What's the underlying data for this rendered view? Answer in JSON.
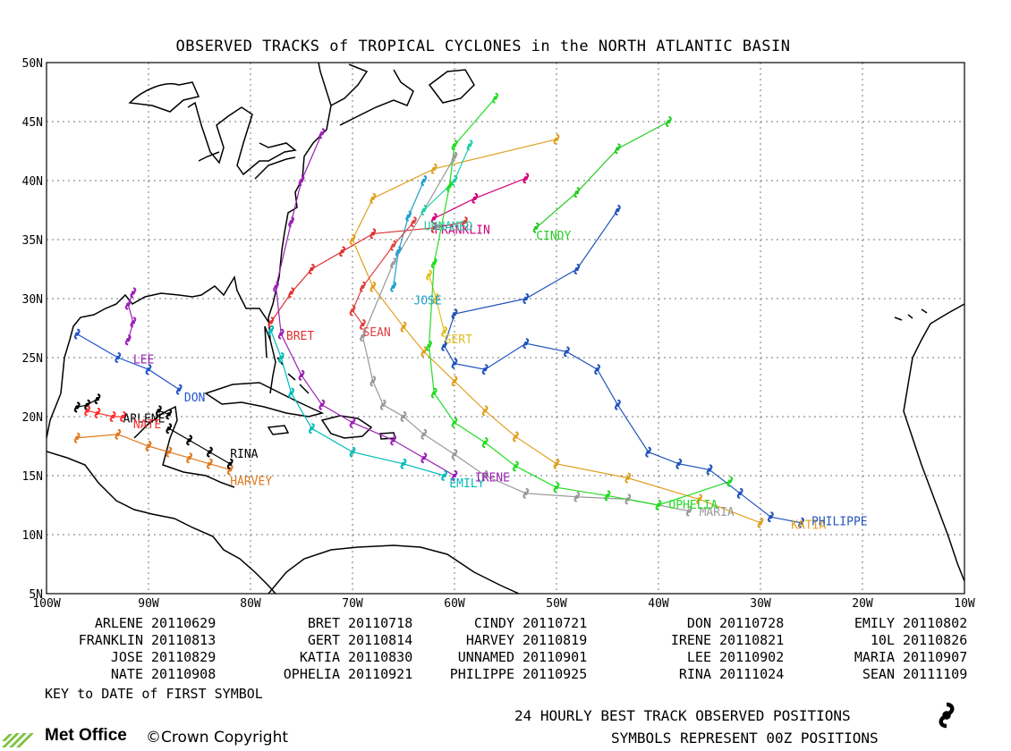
{
  "title": "OBSERVED TRACKS of TROPICAL CYCLONES in the NORTH ATLANTIC BASIN",
  "axes": {
    "lat_labels": [
      "50N",
      "45N",
      "40N",
      "35N",
      "30N",
      "25N",
      "20N",
      "15N",
      "10N",
      "5N"
    ],
    "lon_labels": [
      "100W",
      "90W",
      "80W",
      "70W",
      "60W",
      "50W",
      "40W",
      "30W",
      "20W",
      "10W"
    ]
  },
  "storms": [
    {
      "name": "ARLENE",
      "date": "20110629",
      "color": "#000000"
    },
    {
      "name": "BRET",
      "date": "20110718",
      "color": "#e03030"
    },
    {
      "name": "CINDY",
      "date": "20110721",
      "color": "#22cc22"
    },
    {
      "name": "DON",
      "date": "20110728",
      "color": "#2255cc"
    },
    {
      "name": "EMILY",
      "date": "20110802",
      "color": "#00bbbb"
    },
    {
      "name": "FRANKLIN",
      "date": "20110813",
      "color": "#d4007a"
    },
    {
      "name": "GERT",
      "date": "20110814",
      "color": "#e0c020"
    },
    {
      "name": "HARVEY",
      "date": "20110819",
      "color": "#e07a20"
    },
    {
      "name": "IRENE",
      "date": "20110821",
      "color": "#9a22b4"
    },
    {
      "name": "10L",
      "date": "20110826",
      "color": "#000000"
    },
    {
      "name": "JOSE",
      "date": "20110829",
      "color": "#20a0d0"
    },
    {
      "name": "KATIA",
      "date": "20110830",
      "color": "#e0a020"
    },
    {
      "name": "UNNAMED",
      "date": "20110901",
      "color": "#22ccaa"
    },
    {
      "name": "LEE",
      "date": "20110902",
      "color": "#9a22b4"
    },
    {
      "name": "MARIA",
      "date": "20110907",
      "color": "#999999"
    },
    {
      "name": "NATE",
      "date": "20110908",
      "color": "#ff3030"
    },
    {
      "name": "OPHELIA",
      "date": "20110921",
      "color": "#22dd22"
    },
    {
      "name": "PHILIPPE",
      "date": "20110925",
      "color": "#2255bb"
    },
    {
      "name": "RINA",
      "date": "20111024",
      "color": "#000000"
    },
    {
      "name": "SEAN",
      "date": "20111109",
      "color": "#e04040"
    }
  ],
  "key_note": "KEY to DATE of FIRST SYMBOL",
  "footer": {
    "line1": "24 HOURLY BEST TRACK OBSERVED POSITIONS",
    "line2": "SYMBOLS REPRESENT 00Z POSITIONS",
    "logo": "Met Office",
    "copyright": "©Crown Copyright"
  }
}
